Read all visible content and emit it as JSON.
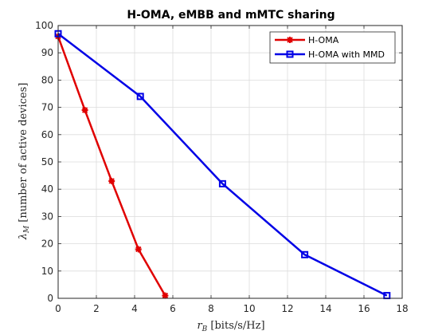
{
  "chart_data": {
    "type": "line",
    "title": "H-OMA, eMBB and mMTC sharing",
    "xlabel_var": "r",
    "xlabel_sub": "B",
    "xlabel_unit": " [bits/s/Hz]",
    "ylabel_var": "λ",
    "ylabel_sub": "M",
    "ylabel_unit": " [number of active devices]",
    "xlim": [
      0,
      18
    ],
    "ylim": [
      0,
      100
    ],
    "xticks": [
      0,
      2,
      4,
      6,
      8,
      10,
      12,
      14,
      16,
      18
    ],
    "yticks": [
      0,
      10,
      20,
      30,
      40,
      50,
      60,
      70,
      80,
      90,
      100
    ],
    "grid": true,
    "legend_position": "top-right",
    "series": [
      {
        "name": "H-OMA",
        "color": "#e00000",
        "marker": "asterisk",
        "x": [
          0,
          1.4,
          2.8,
          4.2,
          5.6
        ],
        "y": [
          96,
          69,
          43,
          18,
          1
        ]
      },
      {
        "name": "H-OMA with MMD",
        "color": "#0000e6",
        "marker": "square",
        "x": [
          0,
          4.3,
          8.6,
          12.9,
          17.2
        ],
        "y": [
          97,
          74,
          42,
          16,
          1
        ]
      }
    ]
  }
}
